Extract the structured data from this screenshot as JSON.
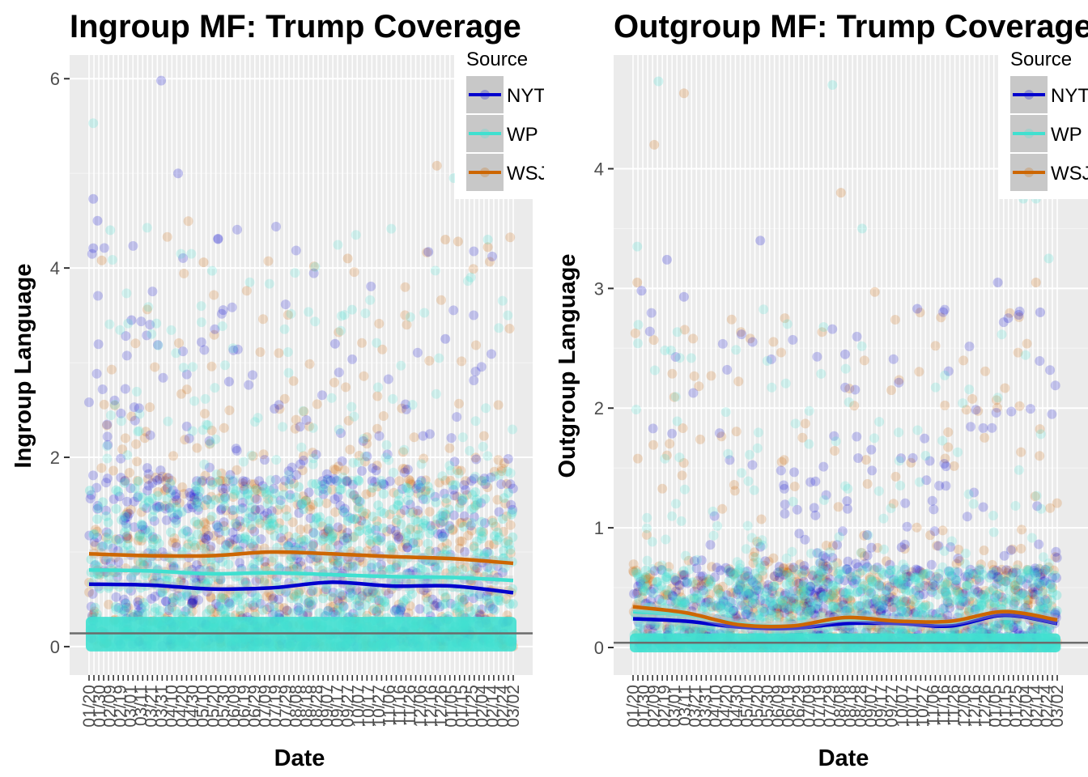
{
  "chart_data": [
    {
      "type": "scatter",
      "title": "Ingroup MF: Trump Coverage",
      "xlabel": "Date",
      "ylabel": "Ingroup Language",
      "ylim": [
        -0.3,
        6.25
      ],
      "yticks": [
        0,
        2,
        4,
        6
      ],
      "x_tick_labels": [
        "01/20",
        "01/30",
        "02/09",
        "02/19",
        "03/01",
        "03/11",
        "03/21",
        "03/31",
        "04/10",
        "04/20",
        "04/30",
        "05/10",
        "05/20",
        "05/30",
        "06/09",
        "06/19",
        "06/29",
        "07/09",
        "07/19",
        "07/29",
        "08/08",
        "08/18",
        "08/28",
        "09/07",
        "09/17",
        "09/27",
        "10/07",
        "10/17",
        "10/27",
        "11/06",
        "11/16",
        "11/26",
        "12/06",
        "12/16",
        "12/26",
        "01/05",
        "01/15",
        "01/25",
        "02/04",
        "02/14",
        "02/24",
        "03/02"
      ],
      "reference_line": 0.14,
      "legend": {
        "title": "Source",
        "placement": "top-right"
      },
      "series": [
        {
          "name": "NYT",
          "color": "#0000cd",
          "smooth": [
            0.66,
            0.65,
            0.61,
            0.62,
            0.68,
            0.64,
            0.64,
            0.57
          ],
          "outliers": [
            [
              0.01,
              4.73
            ],
            [
              0.01,
              4.21
            ],
            [
              0.02,
              4.5
            ],
            [
              0.1,
              3.45
            ],
            [
              0.17,
              5.98
            ],
            [
              0.21,
              5.0
            ],
            [
              0.33,
              2.8
            ],
            [
              0.58,
              3.2
            ],
            [
              0.8,
              4.17
            ],
            [
              0.84,
              3.25
            ]
          ]
        },
        {
          "name": "WP",
          "color": "#40e0d0",
          "smooth": [
            0.81,
            0.8,
            0.77,
            0.78,
            0.76,
            0.74,
            0.73,
            0.7
          ],
          "outliers": [
            [
              0.01,
              5.53
            ],
            [
              0.05,
              4.4
            ],
            [
              0.29,
              3.97
            ],
            [
              0.62,
              3.56
            ],
            [
              0.86,
              4.95
            ],
            [
              0.94,
              4.3
            ],
            [
              0.9,
              3.9
            ]
          ]
        },
        {
          "name": "WSJ",
          "color": "#cd6600",
          "smooth": [
            0.98,
            0.96,
            0.96,
            1.0,
            0.98,
            0.95,
            0.93,
            0.88
          ],
          "outliers": [
            [
              0.03,
              4.08
            ],
            [
              0.27,
              4.06
            ],
            [
              0.61,
              4.1
            ],
            [
              0.82,
              5.08
            ],
            [
              0.84,
              4.3
            ],
            [
              0.87,
              4.28
            ],
            [
              0.94,
              4.22
            ]
          ]
        }
      ]
    },
    {
      "type": "scatter",
      "title": "Outgroup MF: Trump Coverage",
      "xlabel": "Date",
      "ylabel": "Outgroup Language",
      "ylim": [
        -0.23,
        4.95
      ],
      "yticks": [
        0,
        1,
        2,
        3,
        4
      ],
      "x_tick_labels": [
        "01/20",
        "01/30",
        "02/09",
        "02/19",
        "03/01",
        "03/11",
        "03/21",
        "03/31",
        "04/10",
        "04/20",
        "04/30",
        "05/10",
        "05/20",
        "05/30",
        "06/09",
        "06/19",
        "06/29",
        "07/09",
        "07/19",
        "07/29",
        "08/08",
        "08/18",
        "08/28",
        "09/07",
        "09/17",
        "09/27",
        "10/07",
        "10/17",
        "10/27",
        "11/06",
        "11/16",
        "11/26",
        "12/06",
        "12/16",
        "12/26",
        "01/05",
        "01/15",
        "01/25",
        "02/04",
        "02/14",
        "02/24",
        "03/02"
      ],
      "reference_line": 0.04,
      "legend": {
        "title": "Source",
        "placement": "top-right"
      },
      "series": [
        {
          "name": "NYT",
          "color": "#0000cd",
          "smooth": [
            0.24,
            0.22,
            0.17,
            0.16,
            0.2,
            0.2,
            0.18,
            0.27,
            0.2
          ],
          "outliers": [
            [
              0.02,
              2.98
            ],
            [
              0.08,
              3.24
            ],
            [
              0.12,
              2.93
            ],
            [
              0.3,
              3.4
            ],
            [
              0.5,
              2.45
            ],
            [
              0.67,
              2.83
            ],
            [
              0.86,
              3.05
            ],
            [
              0.96,
              2.8
            ]
          ]
        },
        {
          "name": "WP",
          "color": "#40e0d0",
          "smooth": [
            0.3,
            0.27,
            0.2,
            0.18,
            0.23,
            0.22,
            0.2,
            0.27,
            0.22
          ],
          "outliers": [
            [
              0.06,
              4.73
            ],
            [
              0.01,
              3.35
            ],
            [
              0.47,
              4.7
            ],
            [
              0.54,
              3.5
            ],
            [
              0.92,
              3.75
            ],
            [
              0.95,
              3.75
            ],
            [
              0.98,
              3.25
            ]
          ]
        },
        {
          "name": "WSJ",
          "color": "#cd6600",
          "smooth": [
            0.34,
            0.29,
            0.19,
            0.18,
            0.25,
            0.22,
            0.22,
            0.3,
            0.23
          ],
          "outliers": [
            [
              0.05,
              4.2
            ],
            [
              0.12,
              4.63
            ],
            [
              0.49,
              3.8
            ],
            [
              0.01,
              3.05
            ],
            [
              0.57,
              2.97
            ],
            [
              0.88,
              4.05
            ],
            [
              0.95,
              3.05
            ]
          ]
        }
      ]
    }
  ]
}
